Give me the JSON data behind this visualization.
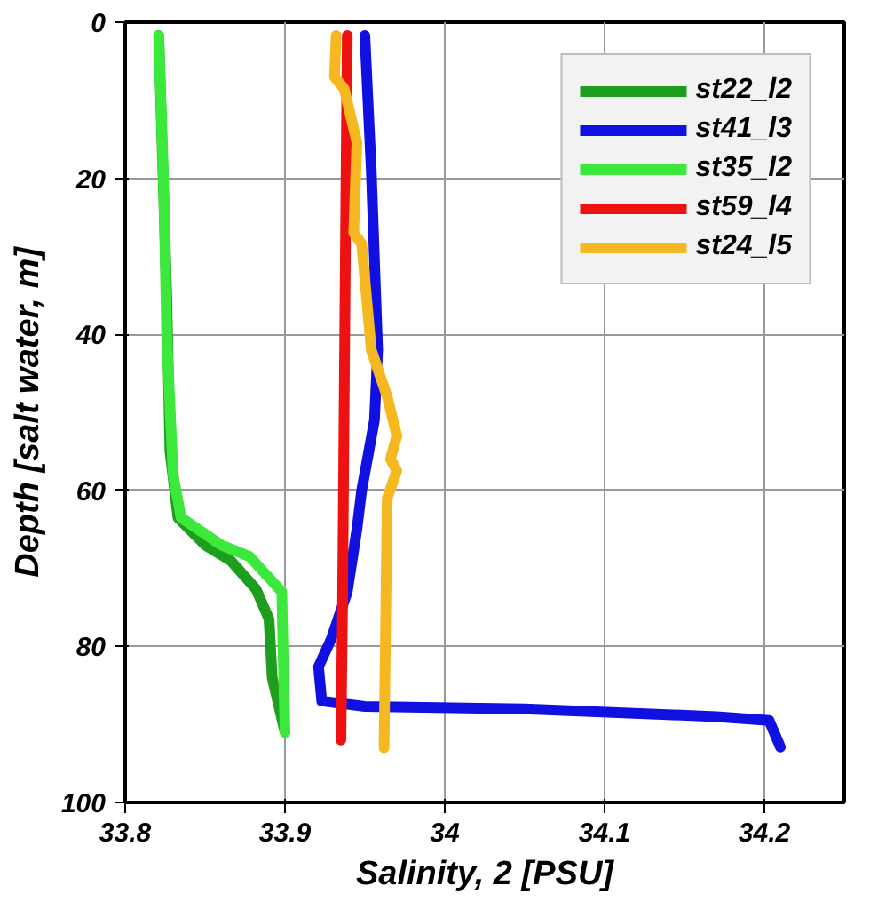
{
  "chart_data": {
    "type": "line",
    "xlabel": "Salinity, 2 [PSU]",
    "ylabel": "Depth [salt water, m]",
    "xlim": [
      33.8,
      34.25
    ],
    "xticks": [
      33.8,
      33.9,
      34,
      34.1,
      34.2
    ],
    "ylim": [
      100,
      0
    ],
    "yticks": [
      0,
      20,
      40,
      60,
      80,
      100
    ],
    "grid": true,
    "legend": "top right",
    "series": [
      {
        "name": "st22_l2",
        "color": "#1e9e1e",
        "x": [
          33.821,
          33.823,
          33.826,
          33.828,
          33.833,
          33.85,
          33.866,
          33.882,
          33.89,
          33.892,
          33.9
        ],
        "values": [
          1.7,
          15,
          35,
          55,
          63.5,
          67,
          69,
          72.7,
          76.5,
          84,
          91
        ]
      },
      {
        "name": "st41_l3",
        "color": "#1010e0",
        "x": [
          33.95,
          33.954,
          33.958,
          33.956,
          33.948,
          33.945,
          33.939,
          33.929,
          33.921,
          33.923,
          33.95,
          34.05,
          34.17,
          34.203,
          34.21
        ],
        "values": [
          1.7,
          19,
          42,
          51,
          60,
          65,
          73,
          79,
          82.6,
          87,
          87.7,
          88,
          89,
          89.5,
          92.9
        ]
      },
      {
        "name": "st35_l2",
        "color": "#3de83d",
        "x": [
          33.821,
          33.824,
          33.826,
          33.83,
          33.835,
          33.86,
          33.878,
          33.898,
          33.899,
          33.9
        ],
        "values": [
          1.7,
          20,
          40,
          58,
          63.5,
          67,
          68.5,
          73,
          82,
          91
        ]
      },
      {
        "name": "st59_l4",
        "color": "#ee1111",
        "x": [
          33.939,
          33.938,
          33.937,
          33.936,
          33.935
        ],
        "values": [
          1.7,
          25,
          50,
          75,
          92
        ]
      },
      {
        "name": "st24_l5",
        "color": "#f5b820",
        "x": [
          33.932,
          33.931,
          33.937,
          33.945,
          33.943,
          33.948,
          33.954,
          33.964,
          33.97,
          33.966,
          33.97,
          33.964,
          33.962
        ],
        "values": [
          1.7,
          7,
          8.5,
          15.4,
          27,
          28.4,
          42,
          48,
          53,
          56,
          57.5,
          61,
          93
        ]
      }
    ]
  }
}
